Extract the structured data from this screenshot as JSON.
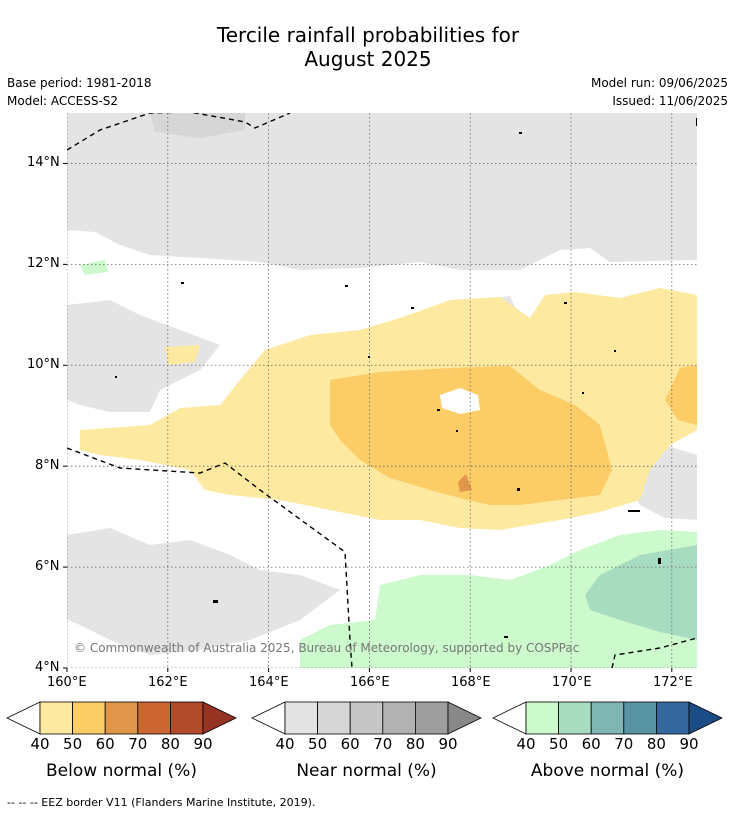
{
  "title_line1": "Tercile rainfall probabilities for",
  "title_line2": "August 2025",
  "base_period": "Base period: 1981-2018",
  "model": "Model: ACCESS-S2",
  "model_run": "Model run: 09/06/2025",
  "issued": "Issued: 11/06/2025",
  "copyright": "© Commonwealth of Australia 2025, Bureau of Meteorology, supported by COSPPac",
  "footer": "--  --  -- EEZ border V11 (Flanders Marine Institute, 2019).",
  "colors": {
    "below": [
      "#fdeaa0",
      "#fccc66",
      "#e0964a",
      "#cc6633",
      "#b04a2a",
      "#963323"
    ],
    "near": [
      "#e4e4e4",
      "#d6d6d6",
      "#c6c6c6",
      "#b2b2b2",
      "#9e9e9e",
      "#888888"
    ],
    "above": [
      "#ccfacc",
      "#a8dcc0",
      "#7fb5b3",
      "#5894a3",
      "#34689e",
      "#1c4c86"
    ]
  },
  "chart_data": {
    "type": "heatmap",
    "x_ticks": [
      "160°E",
      "162°E",
      "164°E",
      "166°E",
      "168°E",
      "170°E",
      "172°E"
    ],
    "y_ticks": [
      "4°N",
      "6°N",
      "8°N",
      "10°N",
      "12°N",
      "14°N"
    ],
    "xlim": [
      160,
      172.5
    ],
    "ylim": [
      4,
      15
    ],
    "grid": true,
    "colorbars": [
      {
        "caption": "Below normal (%)",
        "ticks": [
          "40",
          "50",
          "60",
          "70",
          "80",
          "90"
        ]
      },
      {
        "caption": "Near normal (%)",
        "ticks": [
          "40",
          "50",
          "60",
          "70",
          "80",
          "90"
        ]
      },
      {
        "caption": "Above normal (%)",
        "ticks": [
          "40",
          "50",
          "60",
          "70",
          "80",
          "90"
        ]
      }
    ]
  }
}
